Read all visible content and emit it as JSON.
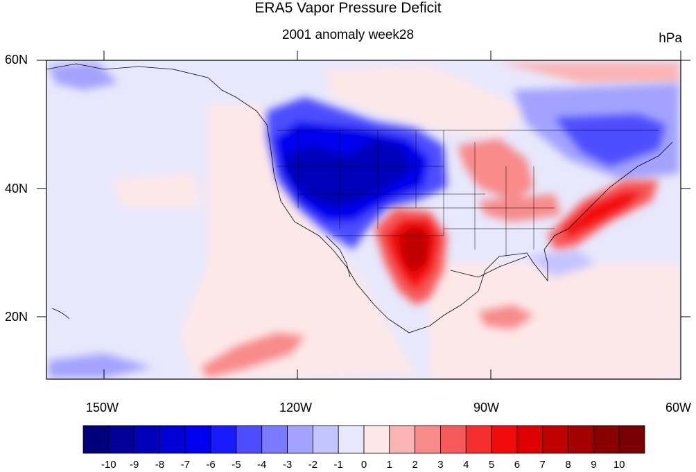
{
  "title": "ERA5 Vapor Pressure Deficit",
  "subtitle": "2001 anomaly week28",
  "units": "hPa",
  "lat_labels": [
    "60N",
    "40N",
    "20N"
  ],
  "lon_labels": [
    "150W",
    "120W",
    "90W",
    "60W"
  ],
  "colorbar": {
    "labels": [
      "-10",
      "-9",
      "-8",
      "-7",
      "-6",
      "-5",
      "-4",
      "-3",
      "-2",
      "-1",
      "0",
      "1",
      "2",
      "3",
      "4",
      "5",
      "6",
      "7",
      "8",
      "9",
      "10"
    ],
    "colors": [
      "#00007a",
      "#000099",
      "#0000b8",
      "#0000d6",
      "#0000f0",
      "#1a1aff",
      "#4d4dff",
      "#7a7aff",
      "#a3a3ff",
      "#c4c4ff",
      "#e8e8fc",
      "#fde8e8",
      "#fbb4b4",
      "#f88a8a",
      "#f75a5a",
      "#f52e2e",
      "#f30a0a",
      "#dc0000",
      "#c00000",
      "#a40000",
      "#8a0000",
      "#780000"
    ]
  }
}
